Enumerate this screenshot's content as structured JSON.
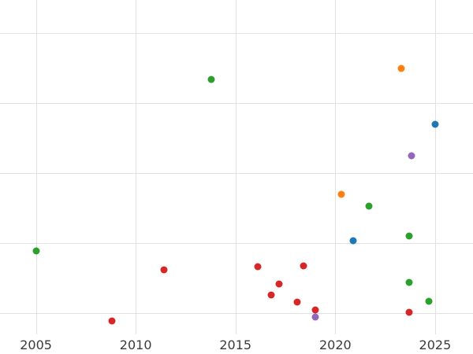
{
  "chart_data": {
    "type": "scatter",
    "title": "",
    "xlabel": "",
    "ylabel": "",
    "legend": "none",
    "grid": true,
    "background_color": "#ffffff",
    "gridline_color": "#e2e2e2",
    "tick_label_color": "#3b3b3b",
    "x_ticks": [
      "2005",
      "2010",
      "2015",
      "2020",
      "2025"
    ],
    "x_tick_values": [
      2005,
      2010,
      2015,
      2020,
      2025
    ],
    "xlim": [
      2003.2,
      2026.9
    ],
    "ylim": [
      0,
      100
    ],
    "y_gridlines": [
      6.4,
      27.3,
      48.2,
      69.2,
      90.1
    ],
    "series": [
      {
        "name": "series-blue",
        "color": "#1f77b4",
        "points": [
          {
            "x": 2020.9,
            "y": 28.0
          },
          {
            "x": 2025.0,
            "y": 62.8
          }
        ]
      },
      {
        "name": "series-orange",
        "color": "#ff7f0e",
        "points": [
          {
            "x": 2020.3,
            "y": 41.9
          },
          {
            "x": 2023.3,
            "y": 79.5
          }
        ]
      },
      {
        "name": "series-green",
        "color": "#2ca02c",
        "points": [
          {
            "x": 2005.0,
            "y": 24.9
          },
          {
            "x": 2013.8,
            "y": 76.2
          },
          {
            "x": 2021.7,
            "y": 38.4
          },
          {
            "x": 2023.7,
            "y": 29.4
          },
          {
            "x": 2023.7,
            "y": 15.5
          },
          {
            "x": 2024.7,
            "y": 9.9
          }
        ]
      },
      {
        "name": "series-red",
        "color": "#d62728",
        "points": [
          {
            "x": 2008.8,
            "y": 4.0
          },
          {
            "x": 2011.4,
            "y": 19.3
          },
          {
            "x": 2016.1,
            "y": 20.2
          },
          {
            "x": 2016.8,
            "y": 11.8
          },
          {
            "x": 2017.2,
            "y": 15.1
          },
          {
            "x": 2018.1,
            "y": 9.6
          },
          {
            "x": 2018.4,
            "y": 20.5
          },
          {
            "x": 2019.0,
            "y": 7.3
          },
          {
            "x": 2023.7,
            "y": 6.6
          }
        ]
      },
      {
        "name": "series-purple",
        "color": "#9467bd",
        "points": [
          {
            "x": 2019.0,
            "y": 5.2
          },
          {
            "x": 2023.8,
            "y": 53.4
          }
        ]
      }
    ]
  }
}
